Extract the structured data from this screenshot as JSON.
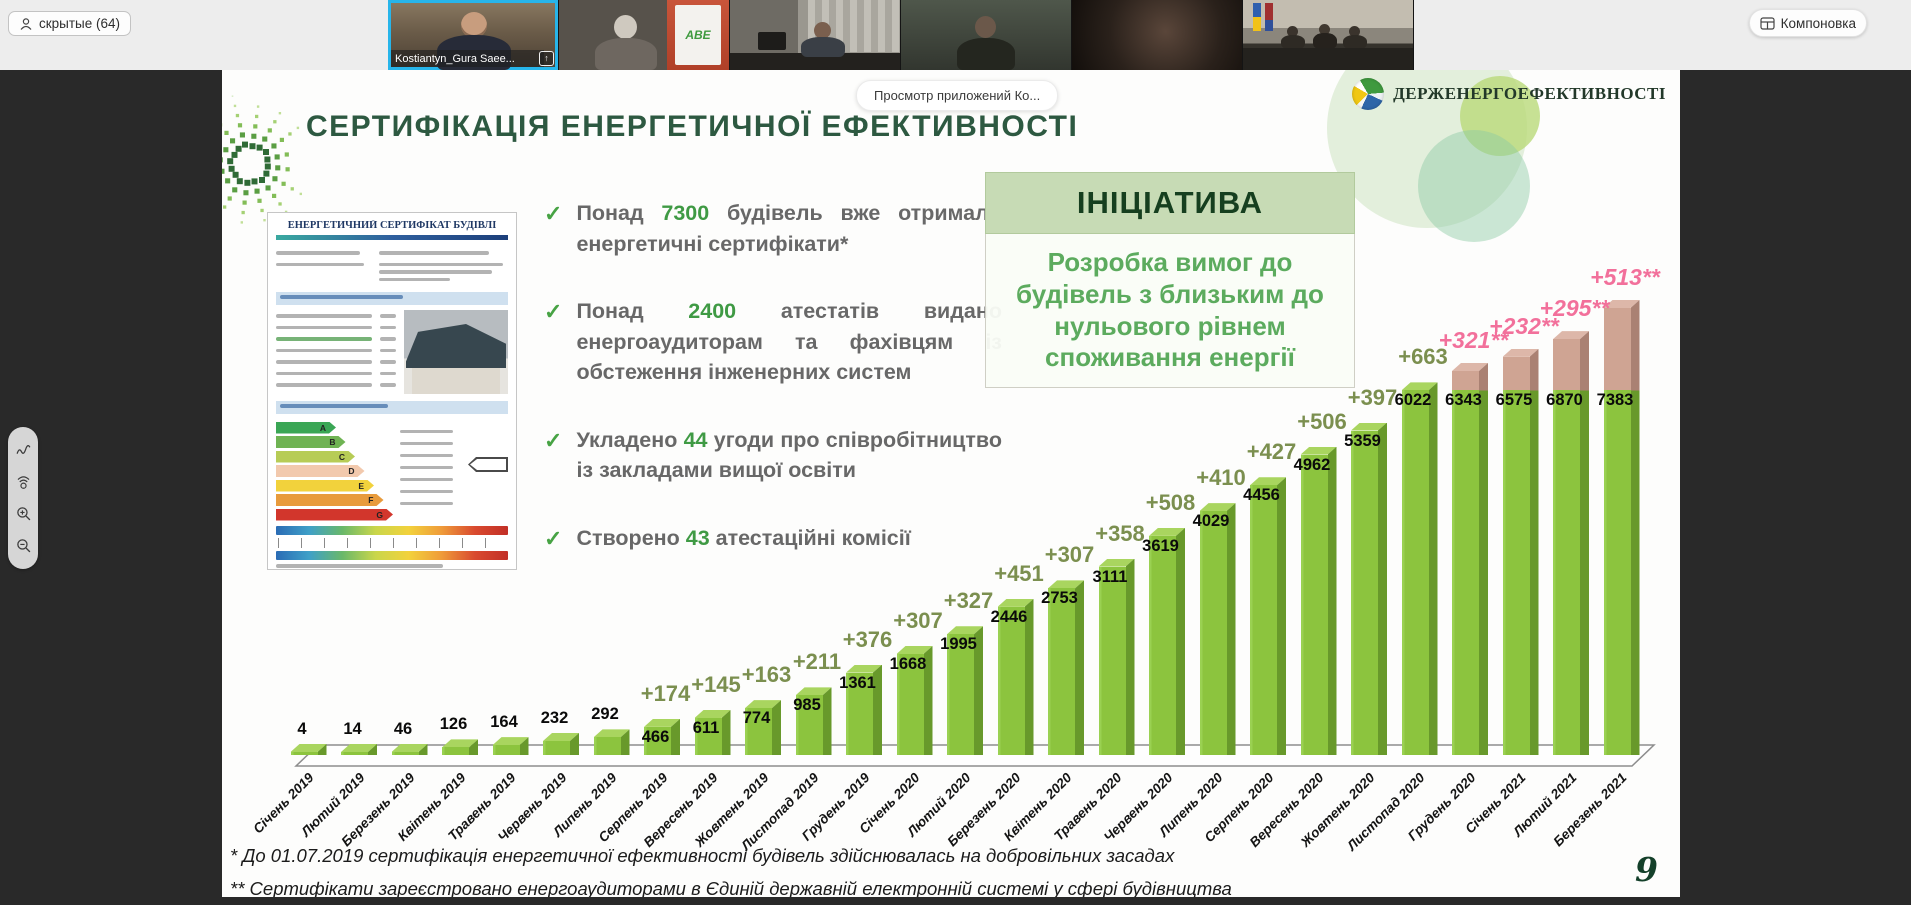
{
  "meeting": {
    "hidden_participants_button": "скрытые (64)",
    "layout_button": "Компоновка",
    "apps_overlay_pill": "Просмотр приложений Ко...",
    "active_participant_name": "Kostiantyn_Gura Saee...",
    "share_up_arrow": "↑",
    "abe_banner_text": "ABE"
  },
  "annotation_toolbar": {
    "icons": [
      "draw-icon",
      "laser-pointer-icon",
      "zoom-in-icon",
      "zoom-out-icon"
    ]
  },
  "slide": {
    "title": "СЕРТИФІКАЦІЯ ЕНЕРГЕТИЧНОЇ ЕФЕКТИВНОСТІ",
    "logo_text": "ДЕРЖЕНЕРГОЕФЕКТИВНОСТІ",
    "check": "✓",
    "bullets": [
      {
        "pre": "Понад ",
        "num": "7300",
        "post": " будівель вже отримали енергетичні сертифікати*"
      },
      {
        "pre": "Понад ",
        "num": "2400",
        "post": " атестатів видано енергоаудиторам та фахівцям із обстеження інженерних систем"
      },
      {
        "pre": "Укладено ",
        "num": "44",
        "post": " угоди про співробітництво із закладами вищої освіти"
      },
      {
        "pre": "Створено ",
        "num": "43",
        "post": " атестаційні комісії"
      }
    ],
    "initiative": {
      "title": "ІНІЦІАТИВА",
      "body_lines": [
        "Розробка вимог до",
        "будівель з близьким до",
        "нульового рівнем",
        "споживання енергії"
      ]
    },
    "certificate": {
      "title": "ЕНЕРГЕТИЧНИЙ СЕРТИФІКАТ БУДІВЛІ",
      "classes": [
        "A",
        "B",
        "C",
        "D",
        "E",
        "F",
        "G"
      ],
      "class_colors": [
        "#3aa655",
        "#6fb353",
        "#b7cc56",
        "#f2c9ad",
        "#f2d23c",
        "#e89b3c",
        "#d2362c"
      ]
    },
    "footnotes": [
      "* До 01.07.2019 сертифікація енергетичної ефективності будівель здійснювалась на добровільних засадах",
      "** Сертифікати зареєстровано  енергоаудиторами   в Єдиній державній електронній системі у сфері будівництва"
    ],
    "page_number": "9"
  },
  "chart_data": {
    "type": "bar",
    "title": "",
    "xlabel": "",
    "ylabel": "",
    "ylim": [
      0,
      7500
    ],
    "grid": false,
    "legend": false,
    "categories": [
      "Січень 2019",
      "Лютий 2019",
      "Березень 2019",
      "Квітень 2019",
      "Травень 2019",
      "Червень 2019",
      "Липень 2019",
      "Серпень 2019",
      "Вересень 2019",
      "Жовтень 2019",
      "Листопад 2019",
      "Грудень 2019",
      "Січень 2020",
      "Лютий 2020",
      "Березень 2020",
      "Квітень 2020",
      "Травень 2020",
      "Червень 2020",
      "Липень 2020",
      "Серпень 2020",
      "Вересень 2020",
      "Жовтень 2020",
      "Листопад 2020",
      "Грудень 2020",
      "Січень 2021",
      "Лютий 2021",
      "Березень 2021"
    ],
    "values": [
      4,
      14,
      46,
      126,
      164,
      232,
      292,
      466,
      611,
      774,
      985,
      1361,
      1668,
      1995,
      2446,
      2753,
      3111,
      3619,
      4029,
      4456,
      4962,
      5359,
      6022,
      6343,
      6575,
      6870,
      7383
    ],
    "increment_labels": [
      "",
      "",
      "",
      "",
      "",
      "",
      "",
      "+174",
      "+145",
      "+163",
      "+211",
      "+376",
      "+307",
      "+327",
      "+451",
      "+307",
      "+358",
      "+508",
      "+410",
      "+427",
      "+506",
      "+397",
      "+663",
      "+321**",
      "+232**",
      "+295**",
      "+513**"
    ],
    "new_system_cumulative": [
      0,
      0,
      0,
      0,
      0,
      0,
      0,
      0,
      0,
      0,
      0,
      0,
      0,
      0,
      0,
      0,
      0,
      0,
      0,
      0,
      0,
      0,
      0,
      321,
      553,
      848,
      1361
    ],
    "colors": {
      "bar": "#8cc43e",
      "bar_side": "#68992b",
      "bar_top": "#a9d55f",
      "new_segment": "#cfa493",
      "increment_label": "#7b8f4f",
      "new_increment_label": "#f2709b"
    }
  }
}
